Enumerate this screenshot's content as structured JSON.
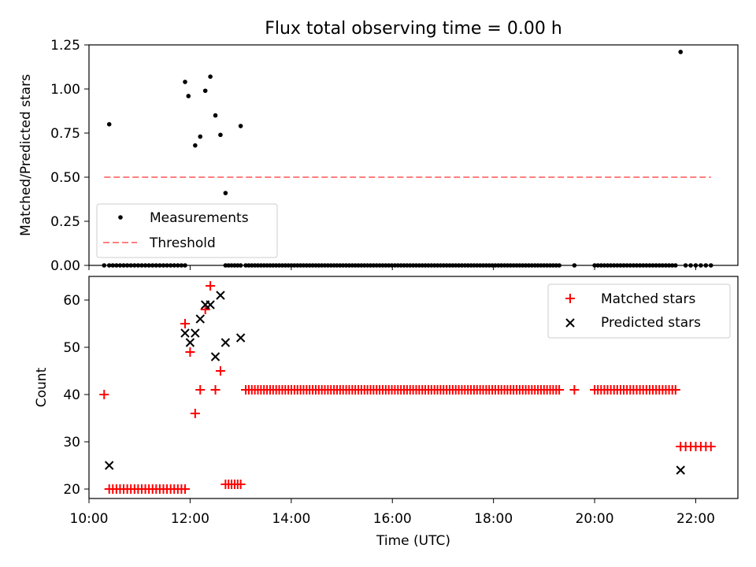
{
  "title": "Flux total observing time = 0.00 h",
  "chart_data": [
    {
      "type": "scatter",
      "ylabel": "Matched/Predicted stars",
      "xlabel": "",
      "xlim": [
        "10:00",
        "22:50"
      ],
      "ylim": [
        0,
        1.25
      ],
      "yticks": [
        "0.00",
        "0.25",
        "0.50",
        "0.75",
        "1.00",
        "1.25"
      ],
      "legend_position": "lower-left",
      "series": [
        {
          "name": "Measurements",
          "color": "#000000",
          "marker": "dot",
          "points": [
            [
              "10:24",
              0.8
            ],
            [
              "11:54",
              1.04
            ],
            [
              "11:58",
              0.96
            ],
            [
              "12:06",
              0.68
            ],
            [
              "12:12",
              0.73
            ],
            [
              "12:18",
              0.99
            ],
            [
              "12:24",
              1.07
            ],
            [
              "12:30",
              0.85
            ],
            [
              "12:36",
              0.74
            ],
            [
              "12:42",
              0.41
            ],
            [
              "13:00",
              0.79
            ],
            [
              "21:42",
              1.21
            ]
          ],
          "zero_runs": [
            [
              "10:18",
              "10:18",
              1
            ],
            [
              "10:24",
              "11:54",
              22
            ],
            [
              "12:42",
              "13:00",
              6
            ],
            [
              "13:06",
              "19:18",
              104
            ],
            [
              "19:36",
              "19:36",
              1
            ],
            [
              "20:00",
              "21:36",
              26
            ],
            [
              "21:48",
              "22:18",
              6
            ]
          ]
        },
        {
          "name": "Threshold",
          "color": "#ff7f7f",
          "style": "dashed",
          "x": [
            "10:18",
            "22:18"
          ],
          "y": [
            0.5,
            0.5
          ]
        }
      ]
    },
    {
      "type": "scatter",
      "ylabel": "Count",
      "xlabel": "Time (UTC)",
      "xlim": [
        "10:00",
        "22:50"
      ],
      "ylim": [
        18,
        65
      ],
      "yticks": [
        "20",
        "30",
        "40",
        "50",
        "60"
      ],
      "xticks": [
        "10:00",
        "12:00",
        "14:00",
        "16:00",
        "18:00",
        "20:00",
        "22:00"
      ],
      "legend_position": "upper-right",
      "series": [
        {
          "name": "Matched stars",
          "color": "#ff0000",
          "marker": "plus",
          "points": [
            [
              "10:18",
              40
            ],
            [
              "11:54",
              55
            ],
            [
              "12:00",
              49
            ],
            [
              "12:06",
              36
            ],
            [
              "12:12",
              41
            ],
            [
              "12:18",
              58
            ],
            [
              "12:24",
              63
            ],
            [
              "12:30",
              41
            ],
            [
              "12:36",
              45
            ],
            [
              "21:42",
              29
            ]
          ],
          "runs": [
            [
              "10:24",
              "11:54",
              20,
              22
            ],
            [
              "12:42",
              "13:00",
              21,
              6
            ],
            [
              "13:06",
              "19:18",
              41,
              104
            ],
            [
              "19:36",
              "19:36",
              41,
              1
            ],
            [
              "20:00",
              "21:36",
              41,
              26
            ],
            [
              "21:48",
              "22:18",
              29,
              6
            ]
          ]
        },
        {
          "name": "Predicted stars",
          "color": "#000000",
          "marker": "x",
          "points": [
            [
              "10:24",
              25
            ],
            [
              "11:54",
              53
            ],
            [
              "12:00",
              51
            ],
            [
              "12:06",
              53
            ],
            [
              "12:12",
              56
            ],
            [
              "12:18",
              59
            ],
            [
              "12:24",
              59
            ],
            [
              "12:30",
              48
            ],
            [
              "12:36",
              61
            ],
            [
              "12:42",
              51
            ],
            [
              "13:00",
              52
            ],
            [
              "21:42",
              24
            ]
          ]
        }
      ]
    }
  ]
}
